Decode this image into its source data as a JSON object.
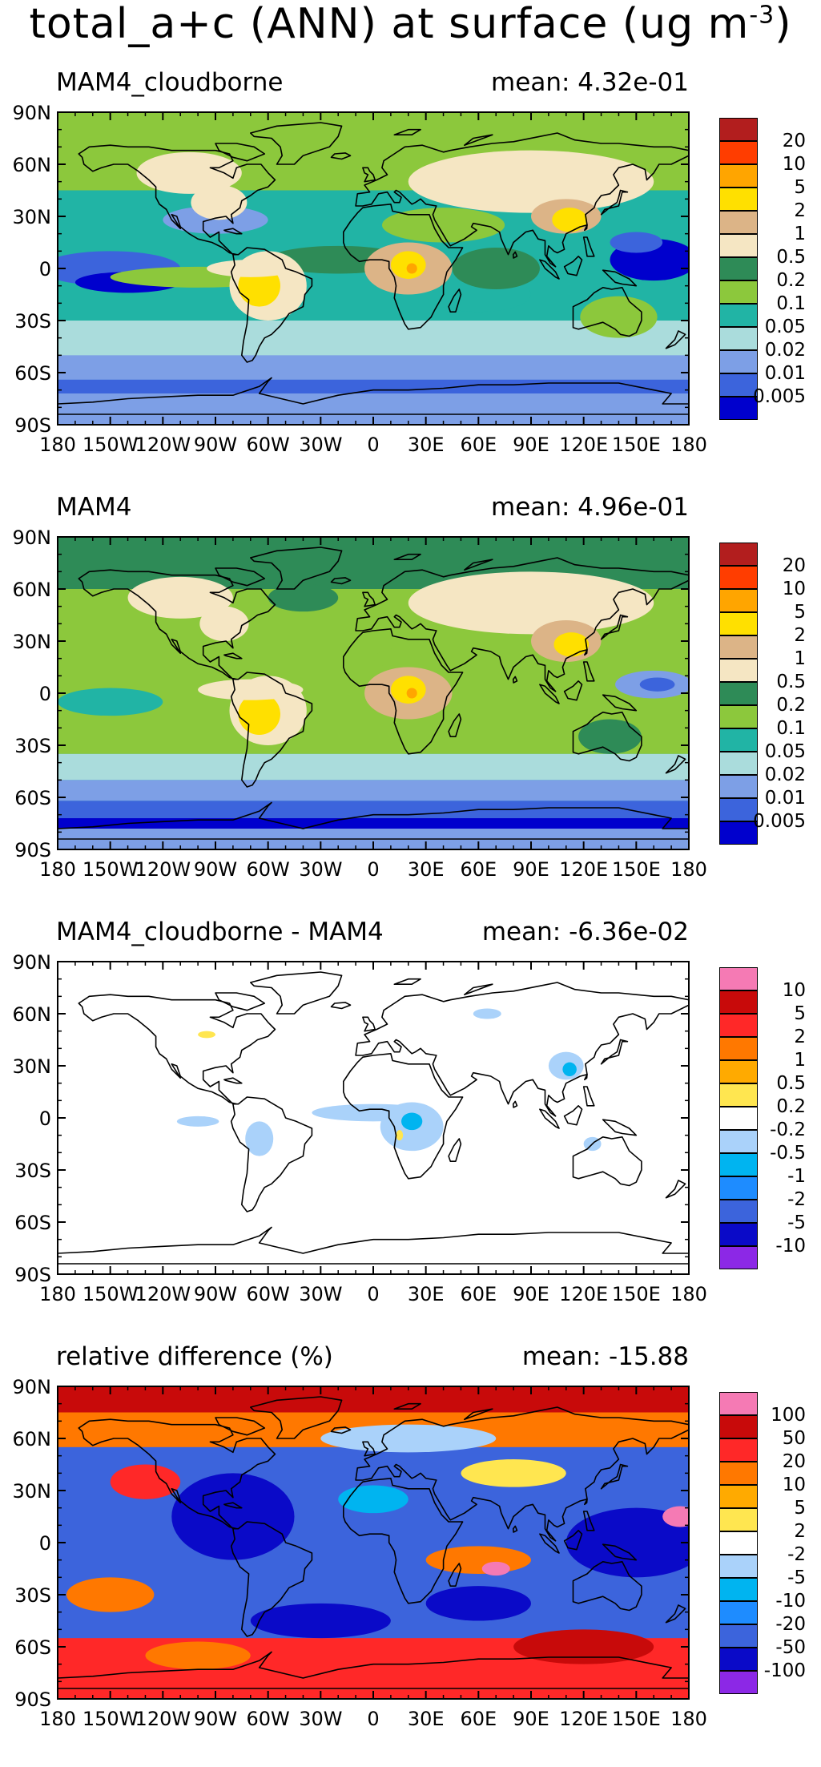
{
  "title": {
    "main": "total_a+c (ANN) at surface (ug m",
    "exponent": "-3",
    "close": ")"
  },
  "axes": {
    "lat_labels": [
      "90N",
      "60N",
      "30N",
      "0",
      "30S",
      "60S",
      "90S"
    ],
    "lon_labels": [
      "180",
      "150W",
      "120W",
      "90W",
      "60W",
      "30W",
      "0",
      "30E",
      "60E",
      "90E",
      "120E",
      "150E",
      "180"
    ]
  },
  "panels": [
    {
      "name": "MAM4_cloudborne",
      "mean": "mean: 4.32e-01",
      "legend_type": "concentration",
      "colors": [
        "#b21e1e",
        "#ff3d00",
        "#ffa500",
        "#ffe000",
        "#dcb487",
        "#f5e6c3",
        "#2e8b57",
        "#8cc83c",
        "#21b4a5",
        "#aadcdc",
        "#7d9fe6",
        "#3c64dc",
        "#0000cd"
      ],
      "ticks": [
        "20",
        "10",
        "5",
        "2",
        "1",
        "0.5",
        "0.2",
        "0.1",
        "0.05",
        "0.02",
        "0.01",
        "0.005"
      ]
    },
    {
      "name": "MAM4",
      "mean": "mean: 4.96e-01",
      "legend_type": "concentration",
      "colors": [
        "#b21e1e",
        "#ff3d00",
        "#ffa500",
        "#ffe000",
        "#dcb487",
        "#f5e6c3",
        "#2e8b57",
        "#8cc83c",
        "#21b4a5",
        "#aadcdc",
        "#7d9fe6",
        "#3c64dc",
        "#0000cd"
      ],
      "ticks": [
        "20",
        "10",
        "5",
        "2",
        "1",
        "0.5",
        "0.2",
        "0.1",
        "0.05",
        "0.02",
        "0.01",
        "0.005"
      ]
    },
    {
      "name": "MAM4_cloudborne - MAM4",
      "mean": "mean: -6.36e-02",
      "legend_type": "difference",
      "colors": [
        "#f57ab4",
        "#c80a0a",
        "#ff2828",
        "#ff7800",
        "#ffaa00",
        "#ffe650",
        "#ffffff",
        "#aad2fa",
        "#00b4f0",
        "#1e8cff",
        "#3c64dc",
        "#0a0ac8",
        "#8c28e6"
      ],
      "ticks": [
        "10",
        "5",
        "2",
        "1",
        "0.5",
        "0.2",
        "-0.2",
        "-0.5",
        "-1",
        "-2",
        "-5",
        "-10"
      ]
    },
    {
      "name": "relative difference (%)",
      "mean": "mean: -15.88",
      "legend_type": "relative",
      "colors": [
        "#f57ab4",
        "#c80a0a",
        "#ff2828",
        "#ff7800",
        "#ffaa00",
        "#ffe650",
        "#ffffff",
        "#aad2fa",
        "#00b4f0",
        "#1e8cff",
        "#3c64dc",
        "#0a0ac8",
        "#8c28e6"
      ],
      "ticks": [
        "100",
        "50",
        "20",
        "10",
        "5",
        "2",
        "-2",
        "-5",
        "-10",
        "-20",
        "-50",
        "-100"
      ]
    }
  ]
}
